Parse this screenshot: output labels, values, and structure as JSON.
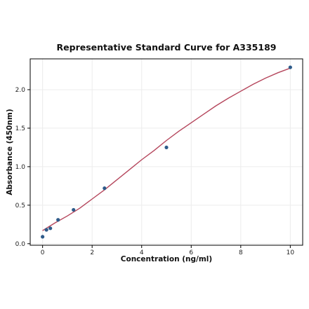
{
  "chart_data": {
    "type": "scatter",
    "title": "Representative Standard Curve for A335189",
    "xlabel": "Concentration (ng/ml)",
    "ylabel": "Absorbance (450nm)",
    "xlim": [
      -0.5,
      10.5
    ],
    "ylim": [
      -0.02,
      2.4
    ],
    "xticks": [
      0,
      2,
      4,
      6,
      8,
      10
    ],
    "yticks": [
      0.0,
      0.5,
      1.0,
      1.5,
      2.0
    ],
    "xtick_labels": [
      "0",
      "2",
      "4",
      "6",
      "8",
      "10"
    ],
    "ytick_labels": [
      "0.0",
      "0.5",
      "1.0",
      "1.5",
      "2.0"
    ],
    "grid": true,
    "legend": "none",
    "colors": {
      "points": "#2e5b8a",
      "curve": "#b5465c",
      "grid": "#ececec",
      "axis": "#000000"
    },
    "series": [
      {
        "kind": "points",
        "x": [
          0,
          0.156,
          0.313,
          0.625,
          1.25,
          2.5,
          5,
          10
        ],
        "y": [
          0.09,
          0.18,
          0.2,
          0.31,
          0.44,
          0.72,
          1.25,
          2.29
        ]
      },
      {
        "kind": "fit-curve",
        "x": [
          0,
          0.5,
          1,
          1.5,
          2,
          2.5,
          3,
          3.5,
          4,
          4.5,
          5,
          5.5,
          6,
          6.5,
          7,
          7.5,
          8,
          8.5,
          9,
          9.5,
          10
        ],
        "y": [
          0.17,
          0.27,
          0.36,
          0.46,
          0.58,
          0.7,
          0.83,
          0.96,
          1.09,
          1.21,
          1.34,
          1.46,
          1.57,
          1.68,
          1.79,
          1.89,
          1.98,
          2.07,
          2.15,
          2.22,
          2.28
        ]
      }
    ]
  }
}
